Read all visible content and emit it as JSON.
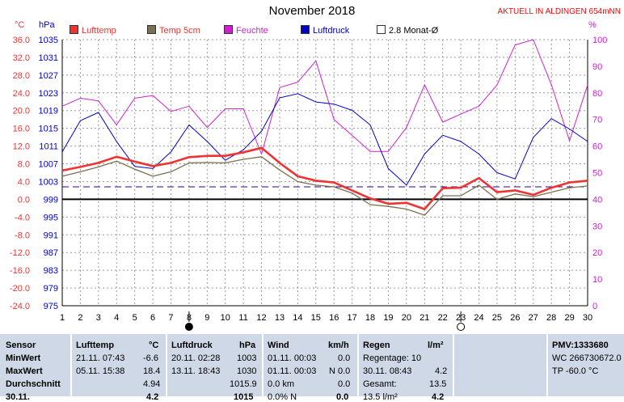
{
  "header": {
    "title": "November 2018",
    "aktuell": "AKTUELL IN ALDINGEN 654mNN",
    "unit_celsius": "°C",
    "unit_hpa": "hPa",
    "unit_percent": "%"
  },
  "legend": [
    {
      "label": "Lufttemp",
      "color": "#ee3333",
      "text_color": "#ee3333"
    },
    {
      "label": "Temp 5cm",
      "color": "#7a7050",
      "text_color": "#ee3333"
    },
    {
      "label": "Feuchte",
      "color": "#cc22cc",
      "text_color": "#cc22cc"
    },
    {
      "label": "Luftdruck",
      "color": "#0000cc",
      "text_color": "#0000cc"
    },
    {
      "label": "2.8 Monat-Ø",
      "color": "#ffffff",
      "text_color": "#000000"
    }
  ],
  "colors": {
    "lufttemp": "#ee3333",
    "temp5cm": "#7a7050",
    "feuchte": "#cc22cc",
    "luftdruck": "#0000cc",
    "monat_avg": "#330088",
    "axis_left": "#ee3333",
    "axis_right": "#cc22cc",
    "table_bg": "#cfd8e6"
  },
  "chart_data": {
    "type": "line",
    "title": "November 2018",
    "x": [
      1,
      2,
      3,
      4,
      5,
      6,
      7,
      8,
      9,
      10,
      11,
      12,
      13,
      14,
      15,
      16,
      17,
      18,
      19,
      20,
      21,
      22,
      23,
      24,
      25,
      26,
      27,
      28,
      29,
      30
    ],
    "x_ticks": [
      "1",
      "2",
      "3",
      "4",
      "5",
      "6",
      "7",
      "8",
      "9",
      "10",
      "11",
      "12",
      "13",
      "14",
      "15",
      "16",
      "17",
      "18",
      "19",
      "20",
      "21",
      "22",
      "23",
      "24",
      "25",
      "26",
      "27",
      "28",
      "29",
      "30"
    ],
    "y_temp_ticks": [
      "36.0",
      "32.0",
      "28.0",
      "24.0",
      "20.0",
      "16.0",
      "12.0",
      "8.0",
      "4.0",
      "0.0",
      "-4.0",
      "-8.0",
      "-12.0",
      "-16.0",
      "-20.0",
      "-24.0"
    ],
    "y_temp_range": [
      -24,
      36
    ],
    "y_pressure_ticks": [
      "1035",
      "1031",
      "1027",
      "1023",
      "1019",
      "1015",
      "1011",
      "1007",
      "1003",
      "999",
      "995",
      "991",
      "987",
      "983",
      "979",
      "975"
    ],
    "y_pressure_range": [
      975,
      1039
    ],
    "y_humidity_ticks": [
      "100",
      "90",
      "80",
      "70",
      "60",
      "50",
      "40",
      "30",
      "20",
      "10",
      "0"
    ],
    "y_humidity_range": [
      0,
      100
    ],
    "grid": true,
    "moon_markers": [
      {
        "day": 8,
        "phase": "new"
      },
      {
        "day": 23,
        "phase": "full"
      }
    ],
    "series": [
      {
        "name": "Lufttemp",
        "axis": "temp",
        "values": [
          6.5,
          7.3,
          8.2,
          9.6,
          8.5,
          7.5,
          8.2,
          9.5,
          9.8,
          9.8,
          10.6,
          11.6,
          8.2,
          5.2,
          4.2,
          3.8,
          2.0,
          0.2,
          -1.0,
          -0.8,
          -2.2,
          2.5,
          2.6,
          4.8,
          1.6,
          2.0,
          1.0,
          2.6,
          3.8,
          4.2
        ]
      },
      {
        "name": "Temp 5cm",
        "axis": "temp",
        "values": [
          5.2,
          6.2,
          7.3,
          8.6,
          6.8,
          5.2,
          6.2,
          8.2,
          8.3,
          8.2,
          9.0,
          9.6,
          6.6,
          4.0,
          3.2,
          2.8,
          1.4,
          -1.2,
          -1.6,
          -2.2,
          -3.6,
          0.8,
          0.8,
          3.2,
          0.0,
          1.2,
          0.6,
          1.6,
          2.6,
          3.0
        ]
      },
      {
        "name": "Feuchte",
        "axis": "humidity",
        "values": [
          75,
          78,
          77,
          68,
          78,
          79,
          73,
          75,
          67,
          74,
          74,
          57,
          82,
          84,
          92,
          70,
          64,
          58,
          58,
          67,
          83,
          69,
          72,
          75,
          83,
          98,
          100,
          83,
          62,
          83
        ]
      },
      {
        "name": "Luftdruck",
        "axis": "pressure",
        "values": [
          1012,
          1019.5,
          1021.5,
          1014.5,
          1008.5,
          1008,
          1012,
          1018.5,
          1014.5,
          1010,
          1012.5,
          1017,
          1025,
          1026,
          1024,
          1023.5,
          1022,
          1018.5,
          1008,
          1004,
          1011.5,
          1016,
          1014.5,
          1011.5,
          1007,
          1005.5,
          1015.5,
          1020,
          1017.5,
          1014.5
        ]
      },
      {
        "name": "2.8 Monat-Ø",
        "axis": "temp",
        "values": [
          2.8,
          2.8,
          2.8,
          2.8,
          2.8,
          2.8,
          2.8,
          2.8,
          2.8,
          2.8,
          2.8,
          2.8,
          2.8,
          2.8,
          2.8,
          2.8,
          2.8,
          2.8,
          2.8,
          2.8,
          2.8,
          2.8,
          2.8,
          2.8,
          2.8,
          2.8,
          2.8,
          2.8,
          2.8,
          2.8
        ]
      }
    ]
  },
  "table": {
    "sensor": {
      "head": "Sensor",
      "min": "MinWert",
      "max": "MaxWert",
      "avg": "Durchschnitt",
      "last": "30.11."
    },
    "lufttemp": {
      "head": "Lufttemp",
      "unit": "°C",
      "min_date": "21.11.   07:43",
      "min_val": "-6.6",
      "max_date": "05.11.   15:38",
      "max_val": "18.4",
      "avg_val": "4.94",
      "last_val": "4.2"
    },
    "luftdruck": {
      "head": "Luftdruck",
      "unit": "hPa",
      "min_date": "20.11.   02:28",
      "min_val": "1003",
      "max_date": "13.11.   18:43",
      "max_val": "1030",
      "avg_val": "1015.9",
      "last_val": "1015"
    },
    "wind": {
      "head": "Wind",
      "unit": "km/h",
      "min_date": "01.11.   00:03",
      "min_val": "0.0",
      "max_date": "01.11.   00:03",
      "max_val": "N 0.0",
      "avg_left": "0.0 km",
      "avg_val": "0.0",
      "last_left": "0.0% N",
      "last_val": "0.0"
    },
    "regen": {
      "head": "Regen",
      "unit": "l/m²",
      "row1": "Regentage: 10",
      "row2_left": "30.11.   08:43",
      "row2_val": "4.2",
      "row3_left": "Gesamt:",
      "row3_val": "13.5",
      "row4_left": "13.5 l/m²",
      "row4_val": "4.2"
    },
    "pmv": {
      "line1": "PMV:1333680",
      "line2": "WC 266730672.0",
      "line3": "TP -60.0 °C"
    }
  }
}
